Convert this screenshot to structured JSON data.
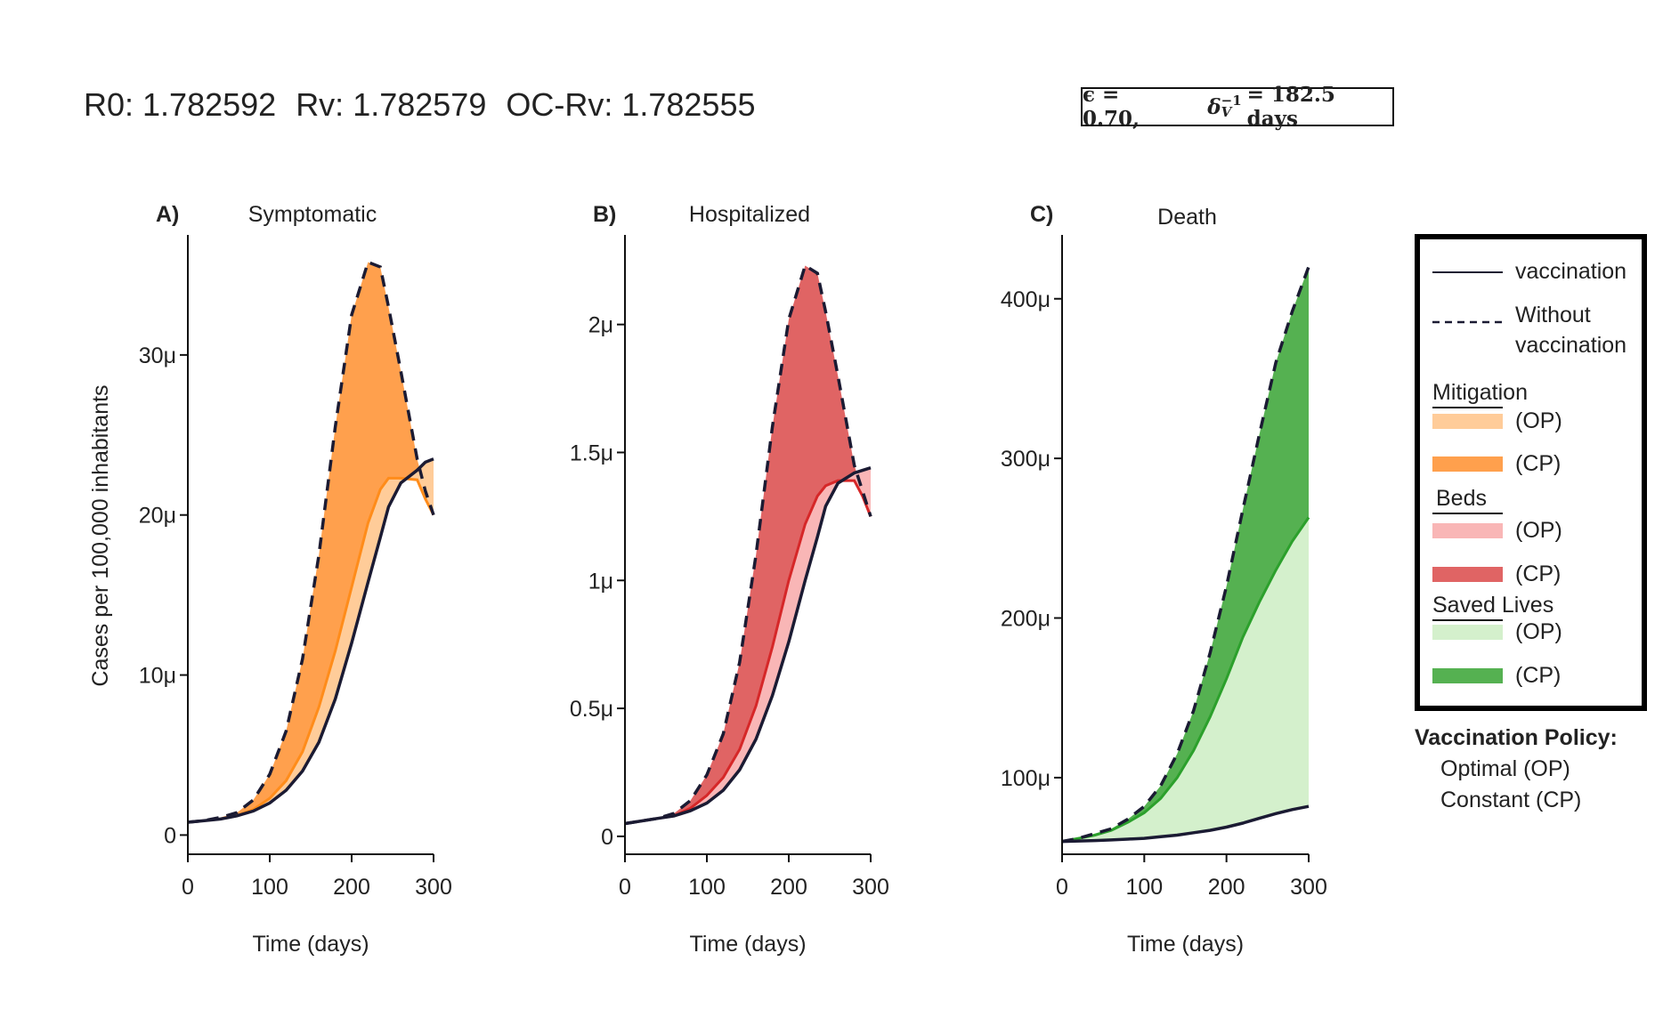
{
  "header": {
    "r0": "R0: 1.782592",
    "rv": "Rv: 1.782579",
    "ocrv": "OC-Rv: 1.782555"
  },
  "param_box": {
    "epsilon_text": "ϵ = 0.70,",
    "delta_text": "δ",
    "delta_sup": "−1",
    "delta_sub": "V",
    "delta_value": "= 182.5 days"
  },
  "legend": {
    "vaccination": "vaccination",
    "without_line1": "Without",
    "without_line2": "vaccination",
    "mitigation": "Mitigation",
    "beds": "Beds",
    "saved_lives": "Saved Lives",
    "op": "(OP)",
    "cp": "(CP)"
  },
  "policy": {
    "title": "Vaccination Policy:",
    "optimal": "Optimal (OP)",
    "constant": "Constant (CP)"
  },
  "colors": {
    "line": "#1b1b33",
    "mitigation_op": "#ffcc99",
    "mitigation_cp": "#ffa04d",
    "mitigation_line": "#ff8c1a",
    "beds_op": "#f9b6b6",
    "beds_cp": "#e06464",
    "beds_line": "#d62728",
    "saved_op": "#d4f0cc",
    "saved_cp": "#55b151",
    "saved_line": "#2ca02c"
  },
  "chart_data": [
    {
      "type": "area",
      "panel": "A)",
      "title": "Symptomatic",
      "xlabel": "Time (days)",
      "ylabel": "Cases per 100,000 inhabitants",
      "xlim": [
        0,
        300
      ],
      "ylim": [
        -1.2,
        37.5
      ],
      "xticks": [
        0,
        100,
        200,
        300
      ],
      "xtick_labels": [
        "0",
        "100",
        "200",
        "300"
      ],
      "yticks": [
        0,
        10,
        20,
        30
      ],
      "ytick_labels": [
        "0",
        "10μ",
        "20μ",
        "30μ"
      ],
      "x": [
        0,
        20,
        40,
        60,
        80,
        100,
        120,
        140,
        160,
        180,
        200,
        220,
        235,
        245,
        260,
        280,
        290,
        300
      ],
      "series": [
        {
          "name": "Without vaccination",
          "style": "dashed",
          "values": [
            0.8,
            0.9,
            1.1,
            1.4,
            2.2,
            3.8,
            6.5,
            11.0,
            17.5,
            25.5,
            32.5,
            35.8,
            35.5,
            33.0,
            29.0,
            23.5,
            21.5,
            20.0
          ]
        },
        {
          "name": "vaccination (OP)",
          "style": "solid",
          "values": [
            0.8,
            0.9,
            1.0,
            1.2,
            1.6,
            2.3,
            3.4,
            5.2,
            8.0,
            11.5,
            15.5,
            19.5,
            21.6,
            22.3,
            22.3,
            22.2,
            21.0,
            20.0
          ]
        },
        {
          "name": "vaccination (CP)",
          "style": "solid",
          "values": [
            0.8,
            0.9,
            1.0,
            1.2,
            1.5,
            2.0,
            2.8,
            4.0,
            5.8,
            8.5,
            12.0,
            15.8,
            18.6,
            20.5,
            22.0,
            22.8,
            23.3,
            23.5
          ]
        }
      ]
    },
    {
      "type": "area",
      "panel": "B)",
      "title": "Hospitalized",
      "xlabel": "Time (days)",
      "ylabel": "",
      "xlim": [
        0,
        300
      ],
      "ylim": [
        -0.07,
        2.35
      ],
      "xticks": [
        0,
        100,
        200,
        300
      ],
      "xtick_labels": [
        "0",
        "100",
        "200",
        "300"
      ],
      "yticks": [
        0,
        0.5,
        1,
        1.5,
        2
      ],
      "ytick_labels": [
        "0",
        "0.5μ",
        "1μ",
        "1.5μ",
        "2μ"
      ],
      "x": [
        0,
        20,
        40,
        60,
        80,
        100,
        120,
        140,
        160,
        180,
        200,
        220,
        235,
        245,
        260,
        280,
        290,
        300
      ],
      "series": [
        {
          "name": "Without vaccination",
          "style": "dashed",
          "values": [
            0.05,
            0.06,
            0.07,
            0.09,
            0.14,
            0.24,
            0.4,
            0.68,
            1.1,
            1.6,
            2.02,
            2.23,
            2.2,
            2.05,
            1.8,
            1.45,
            1.35,
            1.25
          ]
        },
        {
          "name": "vaccination (OP)",
          "style": "solid",
          "values": [
            0.05,
            0.06,
            0.07,
            0.08,
            0.11,
            0.16,
            0.23,
            0.34,
            0.51,
            0.74,
            1.0,
            1.22,
            1.33,
            1.37,
            1.39,
            1.39,
            1.33,
            1.25
          ]
        },
        {
          "name": "vaccination (CP)",
          "style": "solid",
          "values": [
            0.05,
            0.06,
            0.07,
            0.08,
            0.1,
            0.13,
            0.18,
            0.26,
            0.38,
            0.55,
            0.76,
            1.0,
            1.17,
            1.29,
            1.38,
            1.42,
            1.43,
            1.44
          ]
        }
      ]
    },
    {
      "type": "area",
      "panel": "C)",
      "title": "Death",
      "xlabel": "Time (days)",
      "ylabel": "",
      "xlim": [
        0,
        300
      ],
      "ylim": [
        52,
        440
      ],
      "xticks": [
        0,
        100,
        200,
        300
      ],
      "xtick_labels": [
        "0",
        "100",
        "200",
        "300"
      ],
      "yticks": [
        100,
        200,
        300,
        400
      ],
      "ytick_labels": [
        "100μ",
        "200μ",
        "300μ",
        "400μ"
      ],
      "x": [
        0,
        20,
        40,
        60,
        80,
        100,
        120,
        140,
        160,
        180,
        200,
        220,
        240,
        260,
        280,
        300
      ],
      "series": [
        {
          "name": "Without vaccination",
          "style": "dashed",
          "values": [
            60,
            62,
            65,
            68,
            74,
            82,
            95,
            115,
            142,
            178,
            220,
            268,
            315,
            360,
            392,
            420
          ]
        },
        {
          "name": "vaccination (OP)",
          "style": "solid",
          "values": [
            60,
            62,
            64,
            67,
            72,
            78,
            87,
            100,
            117,
            138,
            162,
            188,
            210,
            230,
            248,
            263
          ]
        },
        {
          "name": "vaccination (CP)",
          "style": "solid",
          "values": [
            60,
            60.3,
            60.6,
            61,
            61.5,
            62,
            63,
            64,
            65.5,
            67,
            69,
            71.5,
            74.5,
            77.5,
            80,
            82
          ]
        }
      ]
    }
  ]
}
